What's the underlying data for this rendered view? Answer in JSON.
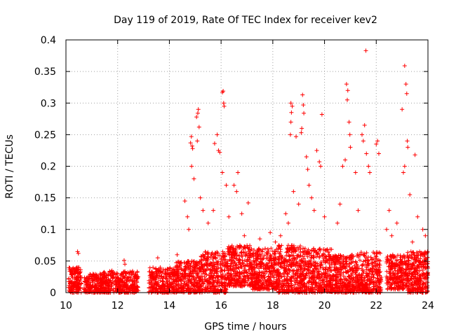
{
  "chart_data": {
    "type": "scatter",
    "title": "Day 119 of 2019, Rate Of TEC Index for receiver kev2",
    "xlabel": "GPS time / hours",
    "ylabel": "ROTI / TECUs",
    "xlim": [
      10,
      24
    ],
    "ylim": [
      0,
      0.4
    ],
    "x_ticks": [
      10,
      12,
      14,
      16,
      18,
      20,
      22,
      24
    ],
    "x_tick_labels": [
      "10",
      "12",
      "14",
      "16",
      "18",
      "20",
      "22",
      "24"
    ],
    "y_ticks": [
      0,
      0.05,
      0.1,
      0.15,
      0.2,
      0.25,
      0.3,
      0.35,
      0.4
    ],
    "y_tick_labels": [
      "0",
      "0.05",
      "0.1",
      "0.15",
      "0.2",
      "0.25",
      "0.3",
      "0.35",
      "0.4"
    ],
    "grid": true,
    "marker": "+",
    "color": "#ff0000",
    "series": [
      {
        "name": "ROTI",
        "points": [
          [
            10.45,
            0.065
          ],
          [
            10.48,
            0.062
          ],
          [
            12.25,
            0.051
          ],
          [
            12.28,
            0.045
          ],
          [
            13.55,
            0.055
          ],
          [
            14.85,
            0.247
          ],
          [
            14.82,
            0.237
          ],
          [
            14.88,
            0.232
          ],
          [
            14.9,
            0.228
          ],
          [
            14.86,
            0.2
          ],
          [
            14.95,
            0.18
          ],
          [
            15.05,
            0.278
          ],
          [
            15.1,
            0.284
          ],
          [
            15.12,
            0.29
          ],
          [
            15.15,
            0.262
          ],
          [
            15.08,
            0.24
          ],
          [
            15.2,
            0.15
          ],
          [
            16.05,
            0.317
          ],
          [
            16.08,
            0.319
          ],
          [
            16.1,
            0.3
          ],
          [
            16.12,
            0.295
          ],
          [
            15.85,
            0.25
          ],
          [
            15.9,
            0.225
          ],
          [
            15.95,
            0.222
          ],
          [
            16.05,
            0.19
          ],
          [
            15.75,
            0.236
          ],
          [
            16.2,
            0.17
          ],
          [
            16.5,
            0.17
          ],
          [
            16.6,
            0.16
          ],
          [
            16.65,
            0.19
          ],
          [
            17.05,
            0.142
          ],
          [
            18.7,
            0.3
          ],
          [
            18.75,
            0.295
          ],
          [
            18.72,
            0.285
          ],
          [
            18.7,
            0.27
          ],
          [
            18.68,
            0.25
          ],
          [
            18.9,
            0.247
          ],
          [
            19.15,
            0.313
          ],
          [
            19.18,
            0.297
          ],
          [
            19.2,
            0.284
          ],
          [
            19.12,
            0.26
          ],
          [
            19.1,
            0.253
          ],
          [
            19.3,
            0.215
          ],
          [
            19.35,
            0.195
          ],
          [
            19.7,
            0.225
          ],
          [
            19.8,
            0.207
          ],
          [
            19.85,
            0.2
          ],
          [
            19.9,
            0.282
          ],
          [
            20.85,
            0.33
          ],
          [
            20.9,
            0.32
          ],
          [
            20.88,
            0.305
          ],
          [
            20.95,
            0.27
          ],
          [
            20.98,
            0.25
          ],
          [
            21.0,
            0.23
          ],
          [
            20.8,
            0.21
          ],
          [
            20.7,
            0.2
          ],
          [
            21.2,
            0.19
          ],
          [
            21.45,
            0.25
          ],
          [
            21.5,
            0.24
          ],
          [
            21.55,
            0.265
          ],
          [
            21.6,
            0.383
          ],
          [
            21.62,
            0.22
          ],
          [
            21.7,
            0.2
          ],
          [
            21.75,
            0.19
          ],
          [
            22.0,
            0.235
          ],
          [
            22.05,
            0.24
          ],
          [
            22.1,
            0.22
          ],
          [
            22.5,
            0.13
          ],
          [
            23.0,
            0.29
          ],
          [
            23.1,
            0.359
          ],
          [
            23.15,
            0.33
          ],
          [
            23.18,
            0.315
          ],
          [
            23.2,
            0.24
          ],
          [
            23.22,
            0.23
          ],
          [
            23.1,
            0.2
          ],
          [
            23.05,
            0.19
          ],
          [
            23.5,
            0.218
          ],
          [
            23.3,
            0.155
          ],
          [
            23.6,
            0.12
          ],
          [
            23.8,
            0.1
          ],
          [
            23.9,
            0.09
          ],
          [
            14.6,
            0.145
          ],
          [
            14.7,
            0.12
          ],
          [
            14.75,
            0.1
          ],
          [
            15.3,
            0.13
          ],
          [
            15.5,
            0.11
          ],
          [
            15.7,
            0.13
          ],
          [
            16.3,
            0.12
          ],
          [
            16.8,
            0.125
          ],
          [
            18.5,
            0.125
          ],
          [
            18.6,
            0.11
          ],
          [
            18.8,
            0.16
          ],
          [
            19.0,
            0.14
          ],
          [
            19.5,
            0.15
          ],
          [
            19.6,
            0.13
          ],
          [
            20.0,
            0.12
          ],
          [
            20.5,
            0.11
          ],
          [
            20.6,
            0.14
          ],
          [
            21.3,
            0.13
          ],
          [
            22.4,
            0.1
          ],
          [
            22.6,
            0.09
          ],
          [
            22.8,
            0.11
          ],
          [
            23.4,
            0.08
          ],
          [
            19.4,
            0.17
          ],
          [
            18.3,
            0.09
          ],
          [
            17.5,
            0.085
          ],
          [
            17.9,
            0.095
          ],
          [
            18.1,
            0.08
          ],
          [
            16.9,
            0.09
          ],
          [
            14.3,
            0.06
          ]
        ]
      }
    ],
    "dense_segments": [
      {
        "x_start": 10.1,
        "x_end": 10.6,
        "y_low": 0.0,
        "y_high": 0.04,
        "count": 160
      },
      {
        "x_start": 10.7,
        "x_end": 11.4,
        "y_low": 0.0,
        "y_high": 0.03,
        "count": 180
      },
      {
        "x_start": 11.4,
        "x_end": 12.8,
        "y_low": 0.0,
        "y_high": 0.035,
        "count": 360
      },
      {
        "x_start": 13.2,
        "x_end": 14.2,
        "y_low": 0.0,
        "y_high": 0.04,
        "count": 260
      },
      {
        "x_start": 14.2,
        "x_end": 15.2,
        "y_low": 0.0,
        "y_high": 0.05,
        "count": 300
      },
      {
        "x_start": 15.2,
        "x_end": 16.2,
        "y_low": 0.0,
        "y_high": 0.065,
        "count": 300
      },
      {
        "x_start": 16.2,
        "x_end": 17.2,
        "y_low": 0.01,
        "y_high": 0.075,
        "count": 320
      },
      {
        "x_start": 17.2,
        "x_end": 18.2,
        "y_low": 0.005,
        "y_high": 0.07,
        "count": 360
      },
      {
        "x_start": 18.2,
        "x_end": 19.2,
        "y_low": 0.0,
        "y_high": 0.075,
        "count": 360
      },
      {
        "x_start": 19.2,
        "x_end": 20.3,
        "y_low": 0.0,
        "y_high": 0.07,
        "count": 360
      },
      {
        "x_start": 20.3,
        "x_end": 21.2,
        "y_low": 0.0,
        "y_high": 0.06,
        "count": 300
      },
      {
        "x_start": 21.2,
        "x_end": 22.2,
        "y_low": 0.0,
        "y_high": 0.065,
        "count": 320
      },
      {
        "x_start": 22.4,
        "x_end": 23.2,
        "y_low": 0.005,
        "y_high": 0.06,
        "count": 260
      },
      {
        "x_start": 23.2,
        "x_end": 24.0,
        "y_low": 0.0,
        "y_high": 0.065,
        "count": 300
      }
    ]
  }
}
